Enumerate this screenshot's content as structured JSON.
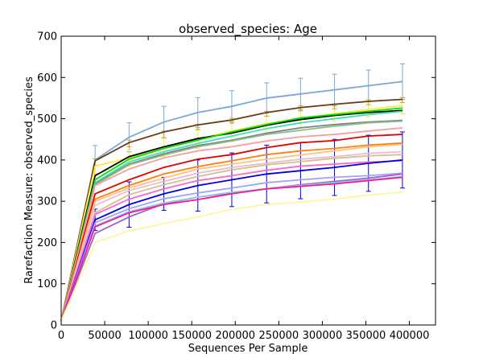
{
  "chart_data": {
    "type": "line",
    "title": "observed_species: Age",
    "xlabel": "Sequences Per Sample",
    "ylabel": "Rarefaction Measure: observed_species",
    "xlim": [
      0,
      430000
    ],
    "ylim": [
      0,
      700
    ],
    "x_ticks": [
      "0",
      "50000",
      "100000",
      "150000",
      "200000",
      "250000",
      "300000",
      "350000",
      "400000"
    ],
    "y_ticks": [
      "0",
      "100",
      "200",
      "300",
      "400",
      "500",
      "600",
      "700"
    ],
    "x": [
      0,
      39000,
      78000,
      118000,
      157000,
      196000,
      236000,
      275000,
      314000,
      353000,
      392000
    ],
    "grid": false,
    "legend": "none",
    "series": [
      {
        "color": "#7aa8d6",
        "values": [
          10,
          400,
          455,
          492,
          515,
          530,
          550,
          560,
          570,
          580,
          590
        ]
      },
      {
        "color": "#6b3a0f",
        "values": [
          10,
          398,
          442,
          468,
          485,
          497,
          515,
          527,
          535,
          542,
          547
        ]
      },
      {
        "color": "#ffeb3b",
        "values": [
          10,
          385,
          405,
          430,
          450,
          470,
          488,
          500,
          512,
          522,
          532
        ]
      },
      {
        "color": "#000000",
        "values": [
          10,
          362,
          408,
          432,
          452,
          465,
          484,
          498,
          508,
          515,
          520
        ]
      },
      {
        "color": "#00e000",
        "values": [
          10,
          352,
          402,
          428,
          448,
          468,
          486,
          502,
          510,
          518,
          526
        ]
      },
      {
        "color": "#40e0b0",
        "values": [
          10,
          345,
          395,
          420,
          440,
          458,
          476,
          490,
          500,
          510,
          518
        ]
      },
      {
        "color": "#7f7f7f",
        "values": [
          10,
          342,
          390,
          415,
          435,
          448,
          465,
          478,
          486,
          492,
          496
        ]
      },
      {
        "color": "#8fbc8f",
        "values": [
          10,
          340,
          388,
          412,
          432,
          446,
          462,
          472,
          482,
          490,
          494
        ]
      },
      {
        "color": "#f4a0a0",
        "values": [
          10,
          338,
          378,
          405,
          422,
          432,
          446,
          456,
          462,
          470,
          478
        ]
      },
      {
        "color": "#e00000",
        "values": [
          10,
          318,
          352,
          382,
          402,
          413,
          430,
          442,
          447,
          458,
          462
        ]
      },
      {
        "color": "#ff7f0e",
        "values": [
          10,
          305,
          338,
          366,
          384,
          398,
          413,
          422,
          428,
          436,
          441
        ]
      },
      {
        "color": "#ffc080",
        "values": [
          10,
          300,
          332,
          356,
          378,
          390,
          402,
          412,
          422,
          432,
          438
        ]
      },
      {
        "color": "#f0b8d0",
        "values": [
          10,
          290,
          326,
          348,
          368,
          382,
          392,
          402,
          408,
          416,
          420
        ]
      },
      {
        "color": "#d0c090",
        "values": [
          10,
          272,
          316,
          340,
          360,
          376,
          388,
          396,
          404,
          410,
          413
        ]
      },
      {
        "color": "#ff66cc",
        "values": [
          10,
          268,
          305,
          330,
          350,
          362,
          375,
          385,
          390,
          395,
          398
        ]
      },
      {
        "color": "#0000e0",
        "values": [
          10,
          255,
          292,
          318,
          338,
          352,
          366,
          374,
          382,
          392,
          400
        ]
      },
      {
        "color": "#a0a0ff",
        "values": [
          10,
          248,
          282,
          306,
          320,
          332,
          345,
          352,
          358,
          362,
          368
        ]
      },
      {
        "color": "#9966cc",
        "values": [
          10,
          222,
          262,
          294,
          310,
          320,
          330,
          340,
          348,
          356,
          366
        ]
      },
      {
        "color": "#87ceeb",
        "values": [
          10,
          240,
          275,
          296,
          310,
          322,
          330,
          338,
          345,
          352,
          360
        ]
      },
      {
        "color": "#ff1493",
        "values": [
          10,
          238,
          272,
          292,
          304,
          318,
          330,
          336,
          342,
          350,
          358
        ]
      },
      {
        "color": "#fff79a",
        "values": [
          10,
          200,
          228,
          246,
          262,
          280,
          292,
          298,
          305,
          315,
          322
        ]
      }
    ],
    "error_bars": [
      {
        "color": "#7aa8d6",
        "values": [
          0,
          400,
          455,
          492,
          515,
          530,
          550,
          560,
          570,
          580,
          590
        ],
        "err": [
          0,
          35,
          35,
          38,
          36,
          38,
          37,
          38,
          38,
          38,
          43
        ]
      },
      {
        "color": "#ffeb3b",
        "values": [
          0,
          385,
          405,
          430,
          450,
          470,
          488,
          500,
          512,
          522,
          532
        ],
        "err": [
          0,
          18,
          20,
          22,
          22,
          25,
          25,
          28,
          18,
          18,
          20
        ]
      },
      {
        "color": "#c8a040",
        "values": [
          0,
          395,
          440,
          462,
          480,
          495,
          512,
          525,
          530,
          540,
          545
        ],
        "err": [
          0,
          8,
          8,
          8,
          6,
          6,
          6,
          6,
          6,
          6,
          6
        ]
      },
      {
        "color": "#0000e0",
        "values": [
          0,
          255,
          292,
          318,
          338,
          352,
          366,
          374,
          382,
          392,
          400
        ],
        "err": [
          0,
          26,
          55,
          40,
          62,
          65,
          70,
          68,
          68,
          68,
          68
        ]
      }
    ]
  }
}
